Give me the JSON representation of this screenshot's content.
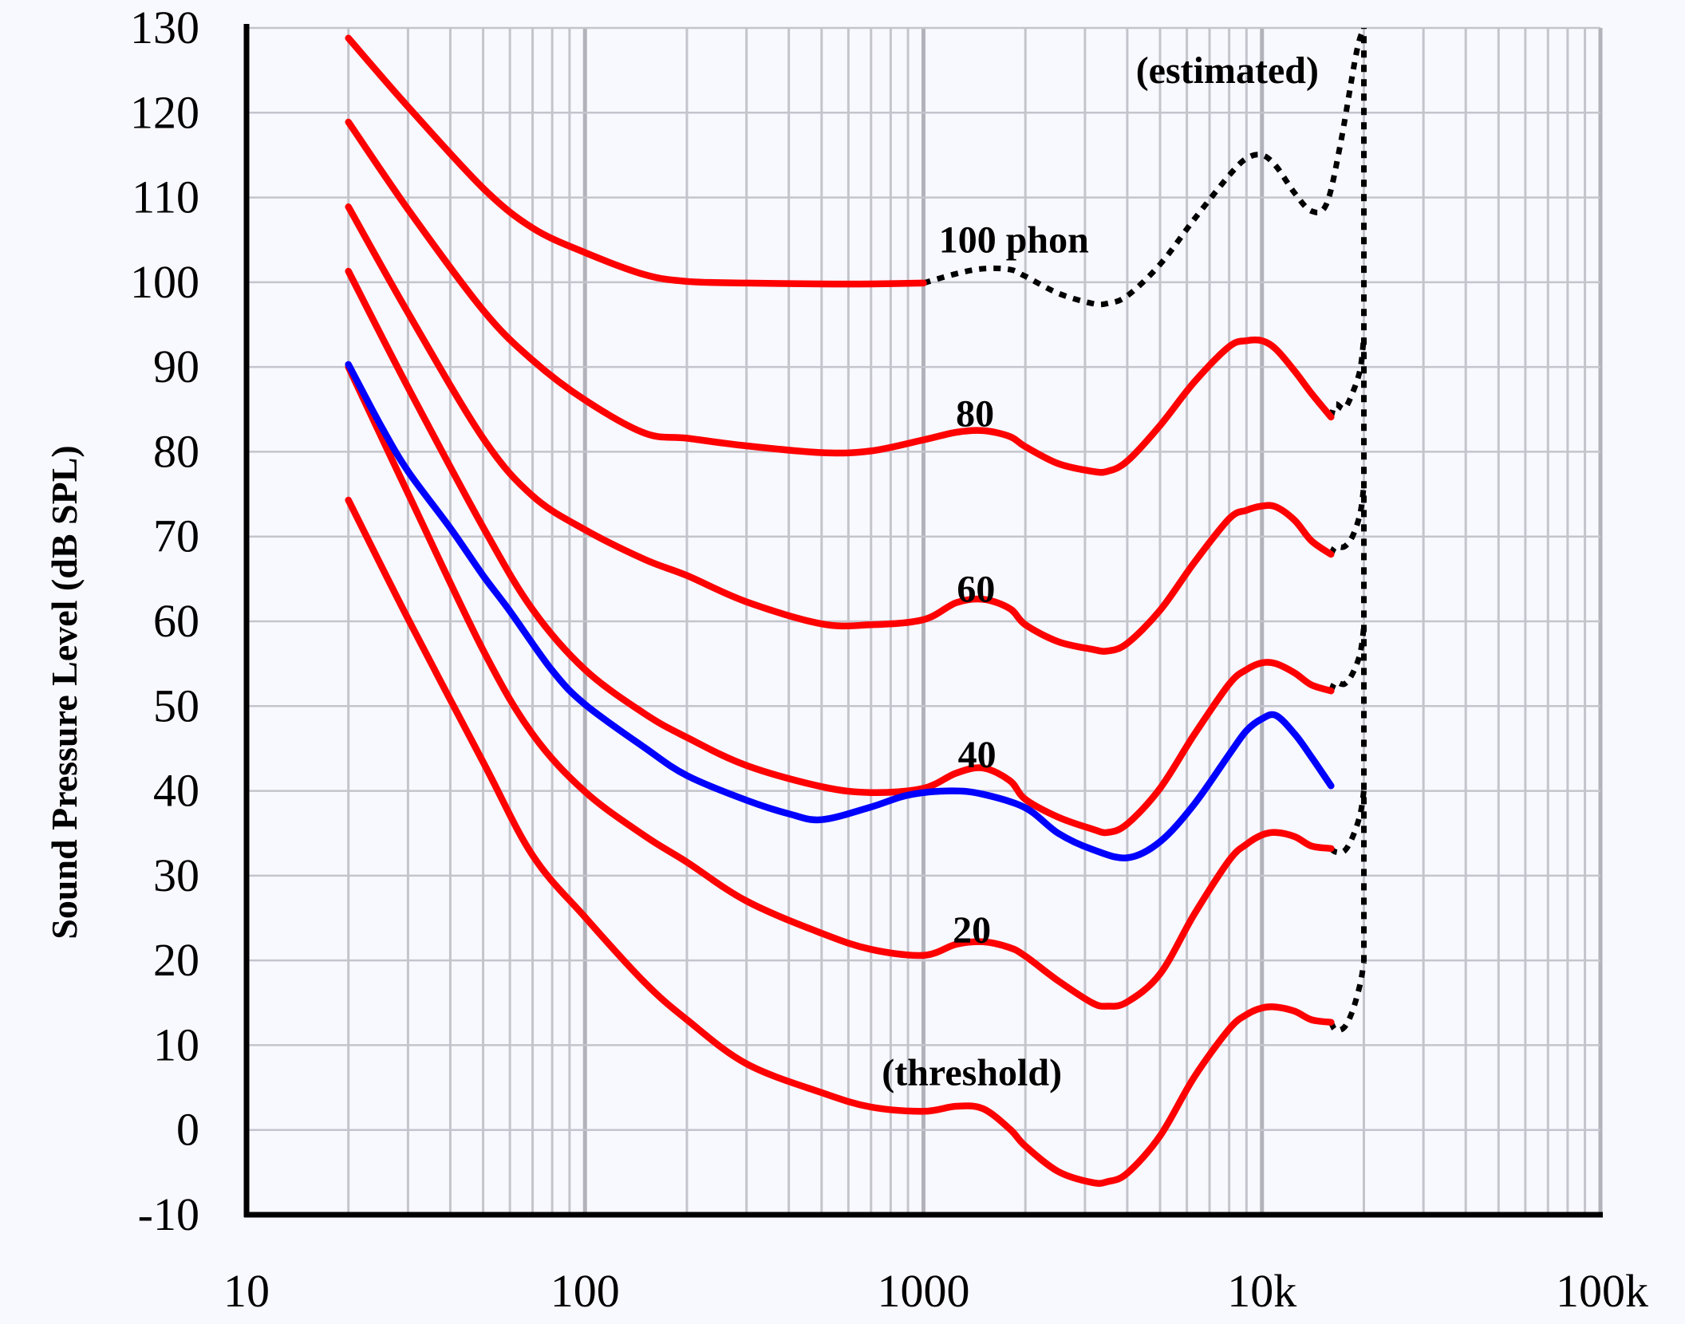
{
  "chart_data": {
    "type": "line",
    "title": "",
    "xlabel": "",
    "ylabel": "Sound Pressure Level (dB SPL)",
    "x_scale": "log",
    "xlim": [
      10,
      100000
    ],
    "ylim": [
      -10,
      130
    ],
    "grid": true,
    "x_ticks": [
      {
        "value": 10,
        "label": "10"
      },
      {
        "value": 100,
        "label": "100"
      },
      {
        "value": 1000,
        "label": "1000"
      },
      {
        "value": 10000,
        "label": "10k"
      },
      {
        "value": 100000,
        "label": "100k"
      }
    ],
    "y_ticks": [
      {
        "value": 130,
        "label": "130"
      },
      {
        "value": 120,
        "label": "120"
      },
      {
        "value": 110,
        "label": "110"
      },
      {
        "value": 100,
        "label": "100"
      },
      {
        "value": 90,
        "label": "90"
      },
      {
        "value": 80,
        "label": "80"
      },
      {
        "value": 70,
        "label": "70"
      },
      {
        "value": 60,
        "label": "60"
      },
      {
        "value": 50,
        "label": "50"
      },
      {
        "value": 40,
        "label": "40"
      },
      {
        "value": 30,
        "label": "30"
      },
      {
        "value": 20,
        "label": "20"
      },
      {
        "value": 10,
        "label": "10"
      },
      {
        "value": 0,
        "label": "0"
      },
      {
        "value": -10,
        "label": "-10"
      }
    ],
    "colors": {
      "red": "#ff0000",
      "blue": "#0000ff",
      "estimated": "#000000"
    },
    "series": [
      {
        "color": "red",
        "style": "solid",
        "points": [
          [
            20,
            128.8
          ],
          [
            30,
            120.7
          ],
          [
            50,
            111.1
          ],
          [
            70,
            106.4
          ],
          [
            100,
            103.5
          ],
          [
            150,
            100.9
          ],
          [
            200,
            100.1
          ],
          [
            300,
            99.9
          ],
          [
            500,
            99.8
          ],
          [
            700,
            99.8
          ],
          [
            1000,
            99.9
          ]
        ]
      },
      {
        "color": "red",
        "style": "solid",
        "points": [
          [
            20,
            118.9
          ],
          [
            30,
            108.6
          ],
          [
            50,
            96.7
          ],
          [
            70,
            90.8
          ],
          [
            100,
            86.1
          ],
          [
            150,
            82.2
          ],
          [
            200,
            81.6
          ],
          [
            300,
            80.7
          ],
          [
            500,
            79.9
          ],
          [
            700,
            80.1
          ],
          [
            1000,
            81.4
          ],
          [
            1250,
            82.3
          ],
          [
            1500,
            82.5
          ],
          [
            1800,
            81.8
          ],
          [
            2000,
            80.6
          ],
          [
            2500,
            78.6
          ],
          [
            3150,
            77.7
          ],
          [
            3500,
            77.7
          ],
          [
            4000,
            78.9
          ],
          [
            5000,
            83.1
          ],
          [
            6300,
            88.2
          ],
          [
            8000,
            92.4
          ],
          [
            9000,
            93.1
          ],
          [
            10000,
            93.1
          ],
          [
            11000,
            92.1
          ],
          [
            12500,
            89.5
          ],
          [
            14000,
            86.9
          ],
          [
            16000,
            84.1
          ]
        ]
      },
      {
        "color": "red",
        "style": "solid",
        "points": [
          [
            20,
            108.9
          ],
          [
            30,
            96.4
          ],
          [
            50,
            81.6
          ],
          [
            70,
            74.8
          ],
          [
            100,
            70.8
          ],
          [
            150,
            67.3
          ],
          [
            200,
            65.4
          ],
          [
            300,
            62.3
          ],
          [
            500,
            59.7
          ],
          [
            700,
            59.6
          ],
          [
            1000,
            60.2
          ],
          [
            1250,
            62.2
          ],
          [
            1500,
            62.6
          ],
          [
            1800,
            61.5
          ],
          [
            2000,
            59.6
          ],
          [
            2500,
            57.6
          ],
          [
            3150,
            56.7
          ],
          [
            3500,
            56.5
          ],
          [
            4000,
            57.4
          ],
          [
            5000,
            61.3
          ],
          [
            6300,
            66.9
          ],
          [
            8000,
            72.1
          ],
          [
            9000,
            73.1
          ],
          [
            10000,
            73.6
          ],
          [
            11000,
            73.5
          ],
          [
            12500,
            71.9
          ],
          [
            14000,
            69.5
          ],
          [
            16000,
            67.9
          ]
        ]
      },
      {
        "color": "red",
        "style": "solid",
        "points": [
          [
            20,
            101.3
          ],
          [
            30,
            87.6
          ],
          [
            50,
            71.1
          ],
          [
            70,
            61.4
          ],
          [
            100,
            54.3
          ],
          [
            150,
            49.1
          ],
          [
            200,
            46.3
          ],
          [
            300,
            43.0
          ],
          [
            500,
            40.5
          ],
          [
            700,
            39.8
          ],
          [
            1000,
            40.3
          ],
          [
            1250,
            42.1
          ],
          [
            1500,
            42.7
          ],
          [
            1800,
            41.2
          ],
          [
            2000,
            39.0
          ],
          [
            2500,
            36.9
          ],
          [
            3150,
            35.5
          ],
          [
            3500,
            35.1
          ],
          [
            4000,
            36.1
          ],
          [
            5000,
            40.3
          ],
          [
            6300,
            46.6
          ],
          [
            8000,
            52.6
          ],
          [
            9000,
            54.3
          ],
          [
            10000,
            55.1
          ],
          [
            11000,
            55.0
          ],
          [
            12500,
            53.9
          ],
          [
            14000,
            52.5
          ],
          [
            16000,
            51.8
          ]
        ]
      },
      {
        "color": "red",
        "style": "solid",
        "points": [
          [
            20,
            90.0
          ],
          [
            30,
            75.1
          ],
          [
            50,
            56.6
          ],
          [
            70,
            46.7
          ],
          [
            100,
            39.9
          ],
          [
            150,
            34.7
          ],
          [
            200,
            31.6
          ],
          [
            300,
            27.0
          ],
          [
            500,
            23.2
          ],
          [
            700,
            21.3
          ],
          [
            1000,
            20.6
          ],
          [
            1250,
            21.9
          ],
          [
            1500,
            22.2
          ],
          [
            1800,
            21.5
          ],
          [
            2000,
            20.5
          ],
          [
            2500,
            17.6
          ],
          [
            3150,
            15.0
          ],
          [
            3500,
            14.6
          ],
          [
            4000,
            15.1
          ],
          [
            5000,
            18.4
          ],
          [
            6300,
            25.4
          ],
          [
            8000,
            31.8
          ],
          [
            9000,
            33.7
          ],
          [
            10000,
            34.8
          ],
          [
            11000,
            35.1
          ],
          [
            12500,
            34.6
          ],
          [
            14000,
            33.5
          ],
          [
            16000,
            33.2
          ]
        ]
      },
      {
        "color": "red",
        "style": "solid",
        "points": [
          [
            20,
            74.3
          ],
          [
            30,
            60.3
          ],
          [
            50,
            43.4
          ],
          [
            70,
            32.4
          ],
          [
            100,
            25.1
          ],
          [
            150,
            17.4
          ],
          [
            200,
            13.0
          ],
          [
            300,
            7.8
          ],
          [
            500,
            4.4
          ],
          [
            700,
            2.7
          ],
          [
            1000,
            2.2
          ],
          [
            1250,
            2.8
          ],
          [
            1500,
            2.5
          ],
          [
            1800,
            0.1
          ],
          [
            2000,
            -1.9
          ],
          [
            2500,
            -4.9
          ],
          [
            3150,
            -6.2
          ],
          [
            3500,
            -6.1
          ],
          [
            4000,
            -5.1
          ],
          [
            5000,
            -0.7
          ],
          [
            6300,
            6.2
          ],
          [
            8000,
            11.9
          ],
          [
            9000,
            13.6
          ],
          [
            10000,
            14.4
          ],
          [
            11000,
            14.5
          ],
          [
            12500,
            14.0
          ],
          [
            14000,
            13.0
          ],
          [
            16000,
            12.7
          ]
        ]
      },
      {
        "color": "blue",
        "style": "solid",
        "points": [
          [
            20,
            90.3
          ],
          [
            25,
            83.0
          ],
          [
            30,
            77.7
          ],
          [
            40,
            71.0
          ],
          [
            50,
            65.4
          ],
          [
            60,
            61.2
          ],
          [
            80,
            54.2
          ],
          [
            100,
            50.2
          ],
          [
            150,
            45.1
          ],
          [
            200,
            41.8
          ],
          [
            300,
            38.9
          ],
          [
            400,
            37.3
          ],
          [
            500,
            36.6
          ],
          [
            700,
            38.1
          ],
          [
            900,
            39.5
          ],
          [
            1200,
            40.0
          ],
          [
            1500,
            39.6
          ],
          [
            2000,
            38.0
          ],
          [
            2500,
            35.0
          ],
          [
            3150,
            33.1
          ],
          [
            4000,
            32.1
          ],
          [
            5000,
            34.0
          ],
          [
            6300,
            38.4
          ],
          [
            8000,
            44.3
          ],
          [
            9000,
            47.1
          ],
          [
            10000,
            48.5
          ],
          [
            11000,
            48.9
          ],
          [
            12500,
            46.7
          ],
          [
            14000,
            44.0
          ],
          [
            16000,
            40.6
          ]
        ]
      },
      {
        "color": "estimated",
        "style": "dotted",
        "points": [
          [
            1000,
            99.9
          ],
          [
            1250,
            101.0
          ],
          [
            1500,
            101.6
          ],
          [
            1800,
            101.5
          ],
          [
            2000,
            100.7
          ],
          [
            2500,
            98.7
          ],
          [
            3150,
            97.5
          ],
          [
            3500,
            97.5
          ],
          [
            4000,
            98.4
          ],
          [
            5000,
            102.1
          ],
          [
            6300,
            107.4
          ],
          [
            8000,
            112.6
          ],
          [
            9000,
            114.6
          ],
          [
            10000,
            115.0
          ],
          [
            11000,
            113.7
          ],
          [
            12500,
            110.5
          ],
          [
            14000,
            108.4
          ],
          [
            15500,
            109.2
          ],
          [
            17000,
            116.0
          ],
          [
            19000,
            127.0
          ],
          [
            20000,
            130
          ]
        ]
      },
      {
        "color": "estimated",
        "style": "dotted",
        "points": [
          [
            16000,
            84.1
          ],
          [
            16500,
            85.6
          ],
          [
            17500,
            85.1
          ],
          [
            18500,
            86.9
          ],
          [
            19500,
            89.7
          ],
          [
            20000,
            93.5
          ]
        ]
      },
      {
        "color": "estimated",
        "style": "dotted",
        "points": [
          [
            16000,
            67.9
          ],
          [
            16500,
            68.8
          ],
          [
            17500,
            68.8
          ],
          [
            18500,
            70.0
          ],
          [
            19500,
            72.7
          ],
          [
            20000,
            76.0
          ]
        ]
      },
      {
        "color": "estimated",
        "style": "dotted",
        "points": [
          [
            16000,
            51.8
          ],
          [
            16500,
            52.8
          ],
          [
            17500,
            52.6
          ],
          [
            18500,
            53.8
          ],
          [
            19500,
            56.2
          ],
          [
            20000,
            59.3
          ]
        ]
      },
      {
        "color": "estimated",
        "style": "dotted",
        "points": [
          [
            16000,
            33.2
          ],
          [
            16500,
            32.8
          ],
          [
            17500,
            32.9
          ],
          [
            18500,
            34.5
          ],
          [
            19500,
            37.2
          ],
          [
            20000,
            40.0
          ]
        ]
      },
      {
        "color": "estimated",
        "style": "dotted",
        "points": [
          [
            16000,
            12.7
          ],
          [
            16500,
            11.8
          ],
          [
            17500,
            12.1
          ],
          [
            18500,
            14.0
          ],
          [
            19500,
            17.2
          ],
          [
            20000,
            19.8
          ]
        ]
      },
      {
        "color": "estimated",
        "style": "dotted",
        "points": [
          [
            20000,
            19.8
          ],
          [
            20000,
            130
          ]
        ]
      }
    ],
    "annotations": [
      {
        "text": "(estimated)",
        "x": 7900,
        "y": 123.5,
        "anchor": "middle"
      },
      {
        "text": "100 phon",
        "x": 1110,
        "y": 103.5,
        "anchor": "start"
      },
      {
        "text": "80",
        "x": 1420,
        "y": 83.0,
        "anchor": "middle"
      },
      {
        "text": "60",
        "x": 1430,
        "y": 62.3,
        "anchor": "middle"
      },
      {
        "text": "40",
        "x": 1440,
        "y": 42.8,
        "anchor": "middle"
      },
      {
        "text": "20",
        "x": 1390,
        "y": 22.1,
        "anchor": "middle"
      },
      {
        "text": "(threshold)",
        "x": 1390,
        "y": 5.3,
        "anchor": "middle"
      }
    ]
  }
}
